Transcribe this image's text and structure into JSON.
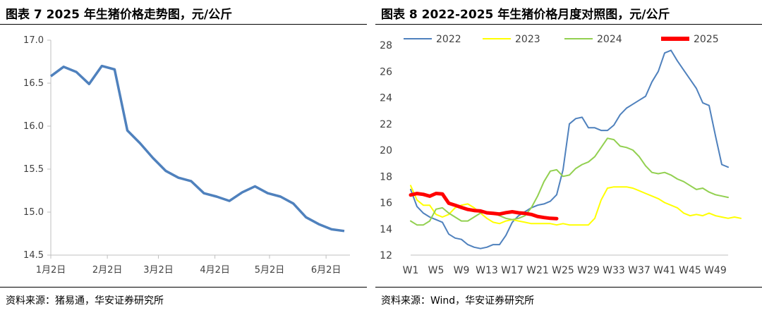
{
  "left": {
    "title": "图表 7 2025 年生猪价格走势图，元/公斤",
    "source": "资料来源：猪易通，华安证券研究所"
  },
  "right": {
    "title": "图表 8 2022-2025 年生猪价格月度对照图，元/公斤",
    "source": "资料来源：Wind，华安证券研究所"
  },
  "chart_data": [
    {
      "type": "line",
      "title": "图表 7 2025 年生猪价格走势图，元/公斤",
      "ylim": [
        14.5,
        17.0
      ],
      "yticks": [
        "17.0",
        "16.5",
        "16.0",
        "15.5",
        "15.0",
        "14.5"
      ],
      "xticks": [
        "1月2日",
        "2月2日",
        "3月2日",
        "4月2日",
        "5月2日",
        "6月2日"
      ],
      "grid": false,
      "legend": "none",
      "colors": {
        "line": "#4f81bd"
      },
      "series": [
        {
          "x": [
            "1/2",
            "1/9",
            "1/16",
            "1/23",
            "1/30",
            "2/6",
            "2/13",
            "2/20",
            "2/27",
            "3/6",
            "3/13",
            "3/20",
            "3/27",
            "4/3",
            "4/10",
            "4/17",
            "4/24",
            "5/1",
            "5/8",
            "5/15",
            "5/22",
            "5/29",
            "6/5",
            "6/12"
          ],
          "values": [
            16.58,
            16.69,
            16.63,
            16.49,
            16.7,
            16.66,
            15.95,
            15.8,
            15.63,
            15.48,
            15.4,
            15.36,
            15.22,
            15.18,
            15.13,
            15.23,
            15.3,
            15.22,
            15.18,
            15.1,
            14.94,
            14.86,
            14.8,
            14.78
          ]
        }
      ]
    },
    {
      "type": "line",
      "title": "图表 8 2022-2025 年生猪价格月度对照图，元/公斤",
      "ylim": [
        12,
        28
      ],
      "yticks": [
        "28",
        "26",
        "24",
        "22",
        "20",
        "18",
        "16",
        "14",
        "12"
      ],
      "xticks": [
        "W1",
        "W5",
        "W9",
        "W13",
        "W17",
        "W21",
        "W25",
        "W29",
        "W33",
        "W37",
        "W41",
        "W45",
        "W49"
      ],
      "grid": false,
      "legend": "top",
      "series": [
        {
          "name": "2022",
          "color": "#4f81bd",
          "values": [
            17.0,
            15.7,
            15.2,
            14.9,
            14.7,
            14.5,
            13.6,
            13.3,
            13.2,
            12.8,
            12.6,
            12.5,
            12.6,
            12.8,
            12.8,
            13.5,
            14.5,
            15.0,
            15.3,
            15.6,
            15.8,
            15.9,
            16.1,
            16.6,
            18.5,
            22.0,
            22.4,
            22.5,
            21.7,
            21.7,
            21.5,
            21.5,
            21.9,
            22.7,
            23.2,
            23.5,
            23.8,
            24.1,
            25.2,
            26.0,
            27.4,
            27.6,
            26.8,
            26.1,
            25.4,
            24.7,
            23.6,
            23.4,
            21.1,
            18.9,
            18.7
          ]
        },
        {
          "name": "2023",
          "color": "#ffff00",
          "values": [
            17.3,
            16.2,
            15.8,
            15.8,
            15.1,
            14.9,
            15.1,
            15.6,
            15.8,
            15.9,
            15.6,
            15.2,
            14.8,
            14.5,
            14.4,
            14.6,
            14.7,
            14.6,
            14.5,
            14.4,
            14.4,
            14.4,
            14.4,
            14.3,
            14.4,
            14.3,
            14.3,
            14.3,
            14.3,
            14.8,
            16.2,
            17.1,
            17.2,
            17.2,
            17.2,
            17.1,
            16.9,
            16.7,
            16.5,
            16.3,
            16.0,
            15.8,
            15.6,
            15.2,
            15.0,
            15.1,
            15.0,
            15.2,
            15.0,
            14.9,
            14.8,
            14.9,
            14.8
          ]
        },
        {
          "name": "2024",
          "color": "#92d050",
          "values": [
            14.6,
            14.3,
            14.3,
            14.6,
            15.5,
            15.6,
            15.2,
            14.9,
            14.6,
            14.6,
            14.9,
            15.2,
            15.3,
            15.2,
            15.0,
            14.8,
            14.7,
            14.8,
            15.0,
            15.6,
            16.5,
            17.6,
            18.4,
            18.5,
            18.0,
            18.1,
            18.6,
            18.9,
            19.1,
            19.5,
            20.2,
            20.9,
            20.8,
            20.3,
            20.2,
            20.0,
            19.5,
            18.8,
            18.3,
            18.2,
            18.3,
            18.1,
            17.8,
            17.6,
            17.3,
            17.0,
            17.1,
            16.8,
            16.6,
            16.5,
            16.4
          ]
        },
        {
          "name": "2025",
          "color": "#ff0000",
          "values": [
            16.58,
            16.69,
            16.63,
            16.49,
            16.7,
            16.66,
            15.95,
            15.8,
            15.63,
            15.48,
            15.4,
            15.36,
            15.22,
            15.18,
            15.13,
            15.23,
            15.3,
            15.22,
            15.18,
            15.1,
            14.94,
            14.86,
            14.8,
            14.78
          ]
        }
      ]
    }
  ]
}
